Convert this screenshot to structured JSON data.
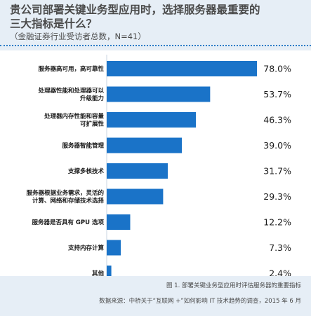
{
  "header": {
    "title_line1": "贵公司部署关键业务型应用时，选择服务器最重要的",
    "title_line2": "三大指标是什么？",
    "subtitle": "（金融证券行业受访者总数，N=41）"
  },
  "footer": {
    "caption": "图 1. 部署关键业务型应用时评估服务器的重要指标",
    "source": "数据来源：中桥关于“互联网 +”如何影响 IT 技术趋势的调查，2015 年 6 月"
  },
  "colors": {
    "bar": "#1a73c8",
    "background": "#e6eef6",
    "plot": "#ffffff"
  },
  "chart_data": {
    "type": "bar",
    "orientation": "horizontal",
    "categories": [
      [
        "服务器高可用，高可靠性"
      ],
      [
        "处理器性能和处理器可以",
        "升级能力"
      ],
      [
        "处理器内存性能和容量",
        "可扩展性"
      ],
      [
        "服务器智能管理"
      ],
      [
        "支撑多核技术"
      ],
      [
        "服务器根据业务需求，灵活的",
        "计算、网络和存储技术选择"
      ],
      [
        "服务器是否具有 GPU 选项"
      ],
      [
        "支持内存计算"
      ],
      [
        "其他"
      ]
    ],
    "values": [
      78.0,
      53.7,
      46.3,
      39.0,
      31.7,
      29.3,
      12.2,
      7.3,
      2.4
    ],
    "value_labels": [
      "78.0%",
      "53.7%",
      "46.3%",
      "39.0%",
      "31.7%",
      "29.3%",
      "12.2%",
      "7.3%",
      "2.4%"
    ],
    "xlim": [
      0,
      78
    ],
    "grid": false,
    "legend": "none"
  }
}
